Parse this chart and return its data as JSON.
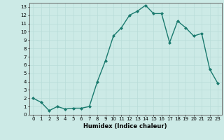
{
  "x": [
    0,
    1,
    2,
    3,
    4,
    5,
    6,
    7,
    8,
    9,
    10,
    11,
    12,
    13,
    14,
    15,
    16,
    17,
    18,
    19,
    20,
    21,
    22,
    23
  ],
  "y": [
    2,
    1.5,
    0.5,
    1,
    0.7,
    0.8,
    0.8,
    1,
    4,
    6.5,
    9.5,
    10.5,
    12,
    12.5,
    13.2,
    12.2,
    12.2,
    8.7,
    11.3,
    10.5,
    9.5,
    9.8,
    5.5,
    3.8
  ],
  "line_color": "#1a7a6e",
  "marker": "D",
  "marker_size": 2.0,
  "line_width": 1.0,
  "xlabel": "Humidex (Indice chaleur)",
  "xlim": [
    -0.5,
    23.5
  ],
  "ylim": [
    0,
    13.5
  ],
  "yticks": [
    0,
    1,
    2,
    3,
    4,
    5,
    6,
    7,
    8,
    9,
    10,
    11,
    12,
    13
  ],
  "xticks": [
    0,
    1,
    2,
    3,
    4,
    5,
    6,
    7,
    8,
    9,
    10,
    11,
    12,
    13,
    14,
    15,
    16,
    17,
    18,
    19,
    20,
    21,
    22,
    23
  ],
  "grid_color": "#b8ddd8",
  "bg_color": "#cceae6",
  "spine_color": "#666666",
  "tick_fontsize": 5.0,
  "xlabel_fontsize": 6.0
}
